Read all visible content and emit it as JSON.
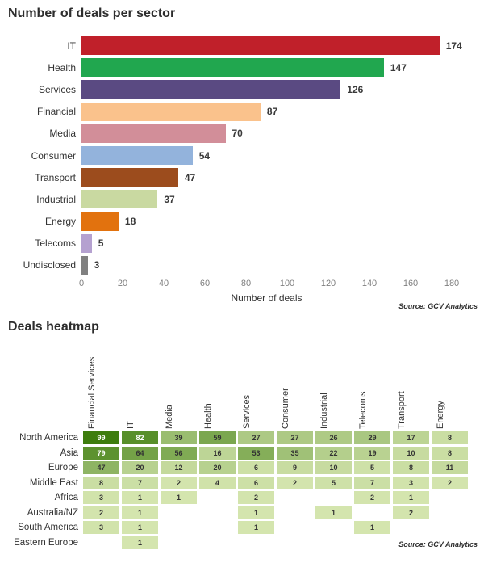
{
  "chart_data": [
    {
      "type": "bar",
      "orientation": "horizontal",
      "title": "Number of deals per sector",
      "xlabel": "Number of deals",
      "source": "Source: GCV Analytics",
      "xlim": [
        0,
        180
      ],
      "xticks": [
        0,
        20,
        40,
        60,
        80,
        100,
        120,
        140,
        160,
        180
      ],
      "categories": [
        "IT",
        "Health",
        "Services",
        "Financial",
        "Media",
        "Consumer",
        "Transport",
        "Industrial",
        "Energy",
        "Telecoms",
        "Undisclosed"
      ],
      "values": [
        174,
        147,
        126,
        87,
        70,
        54,
        47,
        37,
        18,
        5,
        3
      ],
      "bar_colors": [
        "#c0202a",
        "#21a74f",
        "#5a4a82",
        "#fac28c",
        "#d28e99",
        "#93b3dc",
        "#9c4c1d",
        "#c9d9a1",
        "#e2720e",
        "#b5a1d0",
        "#808080"
      ],
      "grid": false,
      "legend": false
    },
    {
      "type": "heatmap",
      "title": "Deals heatmap",
      "source": "Source: GCV Analytics",
      "columns": [
        "Financial Services",
        "IT",
        "Media",
        "Health",
        "Services",
        "Consumer",
        "Industrial",
        "Telecoms",
        "Transport",
        "Energy"
      ],
      "rows": [
        "North America",
        "Asia",
        "Europe",
        "Middle East",
        "Africa",
        "Australia/NZ",
        "South America",
        "Eastern Europe"
      ],
      "values": [
        [
          99,
          82,
          39,
          59,
          27,
          27,
          26,
          29,
          17,
          8
        ],
        [
          79,
          64,
          56,
          16,
          53,
          35,
          22,
          19,
          10,
          8
        ],
        [
          47,
          20,
          12,
          20,
          6,
          9,
          10,
          5,
          8,
          11
        ],
        [
          8,
          7,
          2,
          4,
          6,
          2,
          5,
          7,
          3,
          2
        ],
        [
          3,
          1,
          1,
          null,
          2,
          null,
          null,
          2,
          1,
          null
        ],
        [
          2,
          1,
          null,
          null,
          1,
          null,
          1,
          null,
          2,
          null
        ],
        [
          3,
          1,
          null,
          null,
          1,
          null,
          null,
          1,
          null,
          null
        ],
        [
          null,
          1,
          null,
          null,
          null,
          null,
          null,
          null,
          null,
          null
        ]
      ],
      "color_scale": {
        "min_color": "#d6e6b0",
        "max_color": "#3e7d0e",
        "min_value": 0,
        "max_value": 99,
        "white_text_threshold": 70
      }
    }
  ]
}
